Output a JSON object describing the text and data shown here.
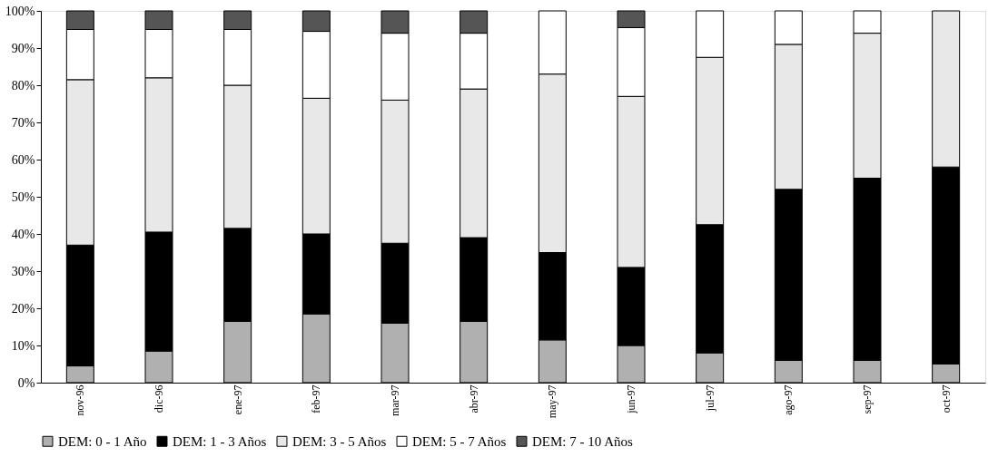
{
  "chart_data": {
    "type": "bar",
    "stacked": true,
    "categories": [
      "nov-96",
      "dic-96",
      "ene-97",
      "feb-97",
      "mar-97",
      "abr-97",
      "may-97",
      "jun-97",
      "jul-97",
      "ago-97",
      "sep-97",
      "oct-97"
    ],
    "series": [
      {
        "name": "DEM: 0 - 1 Año",
        "color": "#b0b0b0",
        "values": [
          4.5,
          8.5,
          16.5,
          18.5,
          16,
          16.5,
          11.5,
          10,
          8,
          6,
          6,
          5
        ]
      },
      {
        "name": "DEM: 1 - 3 Años",
        "color": "#000000",
        "values": [
          32.5,
          32,
          25,
          21.5,
          21.5,
          22.5,
          23.5,
          21,
          34.5,
          46,
          49,
          53
        ]
      },
      {
        "name": "DEM: 3 - 5 Años",
        "color": "#e8e8e8",
        "values": [
          44.5,
          41.5,
          38.5,
          36.5,
          38.5,
          40,
          48,
          46,
          45,
          39,
          39,
          42
        ]
      },
      {
        "name": "DEM: 5 - 7 Años",
        "color": "#ffffff",
        "values": [
          13.5,
          13,
          15,
          18,
          18,
          15,
          17,
          18.5,
          12.5,
          9,
          6,
          null
        ]
      },
      {
        "name": "DEM: 7 - 10 Años",
        "color": "#555555",
        "values": [
          5,
          5,
          5,
          5.5,
          6,
          6,
          null,
          4.5,
          null,
          null,
          null,
          null
        ]
      }
    ],
    "ylim": [
      0,
      100
    ],
    "yticks": [
      {
        "value": 0,
        "label": "0%"
      },
      {
        "value": 10,
        "label": "10%"
      },
      {
        "value": 20,
        "label": "20%"
      },
      {
        "value": 30,
        "label": "30%"
      },
      {
        "value": 40,
        "label": "40%"
      },
      {
        "value": 50,
        "label": "50%"
      },
      {
        "value": 60,
        "label": "60%"
      },
      {
        "value": 70,
        "label": "70%"
      },
      {
        "value": 80,
        "label": "80%"
      },
      {
        "value": 90,
        "label": "90%"
      },
      {
        "value": 100,
        "label": "100%"
      }
    ],
    "grid": false,
    "legend": "bottom"
  }
}
